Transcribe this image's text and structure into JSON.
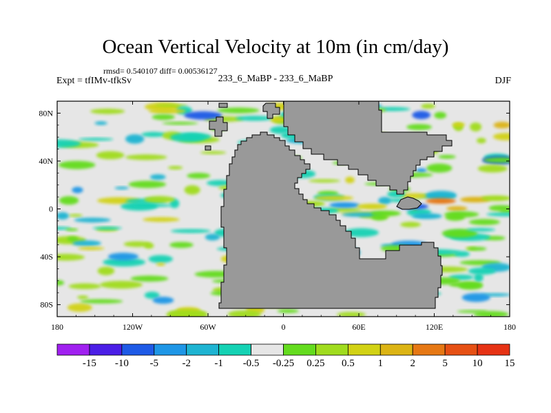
{
  "chart_data": {
    "type": "heatmap",
    "title": "Ocean Vertical Velocity at 10m (in cm/day)",
    "stats_line": "rmsd= 0.540107 diff= 0.00536127",
    "left_label": "Expt = tfIMv-tfkSv",
    "center_label": "233_6_MaBP - 233_6_MaBP",
    "right_label": "DJF",
    "x_range": [
      -180,
      180
    ],
    "y_range": [
      -90,
      90
    ],
    "x_ticks": [
      {
        "value": -180,
        "label": "180"
      },
      {
        "value": -120,
        "label": "120W"
      },
      {
        "value": -60,
        "label": "60W"
      },
      {
        "value": 0,
        "label": "0"
      },
      {
        "value": 60,
        "label": "60E"
      },
      {
        "value": 120,
        "label": "120E"
      },
      {
        "value": 180,
        "label": "180"
      }
    ],
    "y_ticks": [
      {
        "value": 80,
        "label": "80N"
      },
      {
        "value": 40,
        "label": "40N"
      },
      {
        "value": 0,
        "label": "0"
      },
      {
        "value": -40,
        "label": "40S"
      },
      {
        "value": -80,
        "label": "80S"
      }
    ],
    "colorbar": {
      "colors": [
        "#a020f0",
        "#4b1ee6",
        "#1e5ae6",
        "#1e96e6",
        "#1eb4d2",
        "#14d2b4",
        "#e6e6e6",
        "#64dc1e",
        "#a0dc1e",
        "#d2d214",
        "#dcb414",
        "#e67814",
        "#e65014",
        "#e63214"
      ],
      "labels": [
        "-15",
        "-10",
        "-5",
        "-2",
        "-1",
        "-0.5",
        "-0.25",
        "0.25",
        "0.5",
        "1",
        "2",
        "5",
        "10",
        "15"
      ]
    }
  }
}
